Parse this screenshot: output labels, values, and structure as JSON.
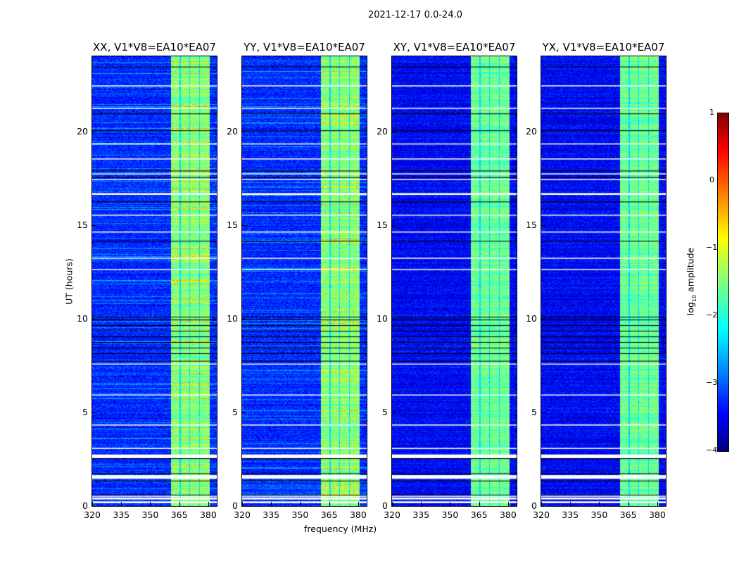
{
  "chart_data": {
    "type": "heatmap",
    "title": "2021-12-17 0.0-24.0",
    "xlabel": "frequency (MHz)",
    "ylabel": "UT (hours)",
    "xlim": [
      320,
      384.4
    ],
    "ylim": [
      0,
      24
    ],
    "xticks": [
      "320",
      "335",
      "350",
      "365",
      "380"
    ],
    "xtick_values": [
      320,
      335,
      350,
      365,
      380
    ],
    "yticks": [
      "0",
      "5",
      "10",
      "15",
      "20"
    ],
    "ytick_values": [
      0,
      5,
      10,
      15,
      20
    ],
    "panels": [
      {
        "title": "XX, V1*V8=EA10*EA07",
        "background": -3.2,
        "band_level": -1.5
      },
      {
        "title": "YY, V1*V8=EA10*EA07",
        "background": -3.2,
        "band_level": -1.5
      },
      {
        "title": "XY, V1*V8=EA10*EA07",
        "background": -3.4,
        "band_level": -1.6
      },
      {
        "title": "YX, V1*V8=EA10*EA07",
        "background": -3.4,
        "band_level": -1.6
      }
    ],
    "rfi_band_mhz": [
      360.5,
      380.5
    ],
    "subbands_mhz": [
      [
        360.5,
        365
      ],
      [
        365.5,
        370
      ],
      [
        370.5,
        375
      ],
      [
        375.5,
        380.5
      ]
    ],
    "flagged_hours_white": [
      [
        0.15,
        0.25
      ],
      [
        0.35,
        0.45
      ],
      [
        0.5,
        0.55
      ],
      [
        1.45,
        1.65
      ],
      [
        2.55,
        2.75
      ],
      [
        3.05,
        3.1
      ],
      [
        4.3,
        4.35
      ],
      [
        5.9,
        5.95
      ],
      [
        7.55,
        7.6
      ],
      [
        12.6,
        12.65
      ],
      [
        13.2,
        13.25
      ],
      [
        14.6,
        14.65
      ],
      [
        15.5,
        15.55
      ],
      [
        16.6,
        16.7
      ],
      [
        17.4,
        17.45
      ],
      [
        17.7,
        17.75
      ],
      [
        18.5,
        18.55
      ],
      [
        19.3,
        19.35
      ],
      [
        21.2,
        21.25
      ],
      [
        22.4,
        22.45
      ]
    ],
    "flagged_hours_black": [
      [
        0.55,
        0.6
      ],
      [
        1.3,
        1.35
      ],
      [
        1.7,
        1.75
      ],
      [
        2.5,
        2.55
      ],
      [
        7.7,
        7.75
      ],
      [
        8.1,
        8.15
      ],
      [
        8.4,
        8.45
      ],
      [
        8.7,
        8.75
      ],
      [
        9.0,
        9.05
      ],
      [
        9.3,
        9.35
      ],
      [
        9.6,
        9.65
      ],
      [
        9.9,
        9.95
      ],
      [
        10.05,
        10.1
      ],
      [
        14.1,
        14.15
      ],
      [
        16.2,
        16.25
      ],
      [
        17.5,
        17.55
      ],
      [
        17.85,
        17.9
      ],
      [
        20.0,
        20.05
      ],
      [
        20.9,
        20.95
      ],
      [
        23.4,
        23.45
      ]
    ],
    "colorbar": {
      "label": "log10 amplitude",
      "label_main": "log",
      "label_sub": "10",
      "label_rest": " amplitude",
      "range": [
        -4,
        1
      ],
      "ticks": [
        "1",
        "0",
        "−1",
        "−2",
        "−3",
        "−4"
      ],
      "tick_values": [
        1,
        0,
        -1,
        -2,
        -3,
        -4
      ],
      "colormap": "jet"
    }
  }
}
